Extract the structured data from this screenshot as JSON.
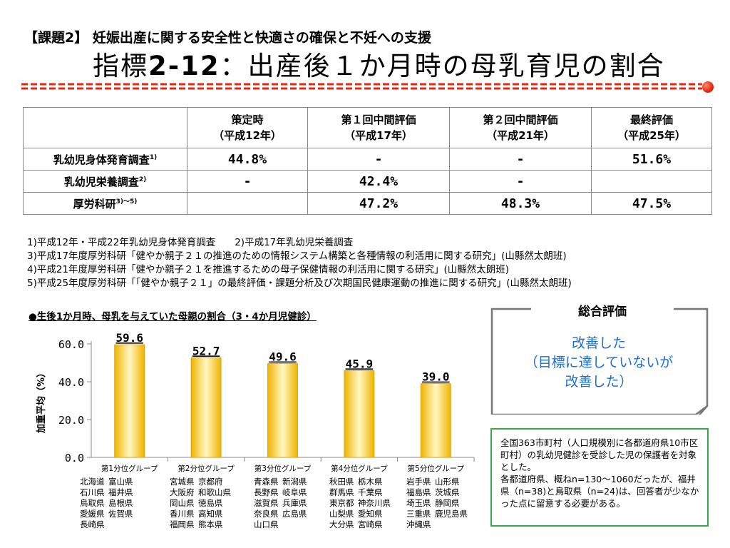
{
  "header": {
    "subtitle": "【課題2】 妊娠出産に関する安全性と快適さの確保と不妊への支援",
    "title_prefix": "指標",
    "title_number": "2-12",
    "title_rest": "：出産後１か月時の母乳育児の割合"
  },
  "table": {
    "columns": [
      {
        "line1": "策定時",
        "line2": "（平成12年）"
      },
      {
        "line1": "第１回中間評価",
        "line2": "（平成17年）"
      },
      {
        "line1": "第２回中間評価",
        "line2": "（平成21年）"
      },
      {
        "line1": "最終評価",
        "line2": "（平成25年）"
      }
    ],
    "rows": [
      {
        "label": "乳幼児身体発育調査",
        "sup": "1)",
        "values": [
          "44.8%",
          "-",
          "-",
          "51.6%"
        ]
      },
      {
        "label": "乳幼児栄養調査",
        "sup": "2)",
        "values": [
          "-",
          "42.4%",
          "-",
          ""
        ]
      },
      {
        "label": "厚労科研",
        "sup": "3)～5)",
        "values": [
          "",
          "47.2%",
          "48.3%",
          "47.5%"
        ]
      }
    ]
  },
  "notes": [
    "1)平成12年・平成22年乳幼児身体発育調査　　2)平成17年乳幼児栄養調査",
    "3)平成17年度厚労科研「健やか親子２１の推進のための情報システム構築と各種情報の利活用に関する研究」(山縣然太朗班)",
    "4)平成21年度厚労科研「健やか親子２１を推進するための母子保健情報の利活用に関する研究」(山縣然太朗班)",
    "5)平成25年度厚労科研「「健やか親子２１」の最終評価・課題分析及び次期国民健康運動の推進に関する研究」(山縣然太朗班)"
  ],
  "chart_title": "●生後1か月時、母乳を与えていた母親の割合（3・4か月児健診）",
  "chart_data": {
    "type": "bar",
    "categories": [
      "第1分位グループ",
      "第2分位グループ",
      "第3分位グループ",
      "第4分位グループ",
      "第5分位グループ"
    ],
    "values": [
      59.6,
      52.7,
      49.6,
      45.9,
      39.0
    ],
    "value_labels": [
      "59.6",
      "52.7",
      "49.6",
      "45.9",
      "39.0"
    ],
    "ylabel": "加重平均（%）",
    "ylim": [
      0,
      60
    ],
    "yticks": [
      "0.0",
      "20.0",
      "40.0",
      "60.0"
    ],
    "ytick_values": [
      0,
      20,
      40,
      60
    ],
    "colors": {
      "bar_center": "#fff7c2",
      "bar_edge": "#f0b400",
      "bar_stroke": "#d99a00"
    }
  },
  "groups": [
    {
      "col1": [
        "北海道",
        "石川県",
        "鳥取県",
        "愛媛県",
        "長崎県"
      ],
      "col2": [
        "富山県",
        "福井県",
        "島根県",
        "佐賀県"
      ]
    },
    {
      "col1": [
        "宮城県",
        "大阪府",
        "岡山県",
        "香川県",
        "福岡県"
      ],
      "col2": [
        "京都府",
        "和歌山県",
        "徳島県",
        "高知県",
        "熊本県"
      ]
    },
    {
      "col1": [
        "青森県",
        "長野県",
        "滋賀県",
        "奈良県",
        "山口県"
      ],
      "col2": [
        "新潟県",
        "岐阜県",
        "兵庫県",
        "広島県"
      ]
    },
    {
      "col1": [
        "秋田県",
        "群馬県",
        "東京都",
        "山梨県",
        "大分県"
      ],
      "col2": [
        "栃木県",
        "千葉県",
        "神奈川県",
        "愛知県",
        "宮崎県"
      ]
    },
    {
      "col1": [
        "岩手県",
        "福島県",
        "埼玉県",
        "三重県",
        "沖縄県"
      ],
      "col2": [
        "山形県",
        "茨城県",
        "静岡県",
        "鹿児島県"
      ]
    }
  ],
  "evaluation": {
    "title": "総合評価",
    "lines": [
      "改善した",
      "（目標に達していないが",
      "改善した）"
    ],
    "color": "#1a6fd1"
  },
  "info": [
    "全国363市町村（人口規模別に各都道府県10市区町村）の乳幼児健診を受診した児の保護者を対象とした。",
    "各都道府県、概ねn=130～1060だったが、福井県（n=38)と鳥取県（n=24)は、回答者が少なかった点に留意する必要がある。"
  ],
  "colors": {
    "accent_red": "#e3290f",
    "info_border": "#3aa84a"
  }
}
